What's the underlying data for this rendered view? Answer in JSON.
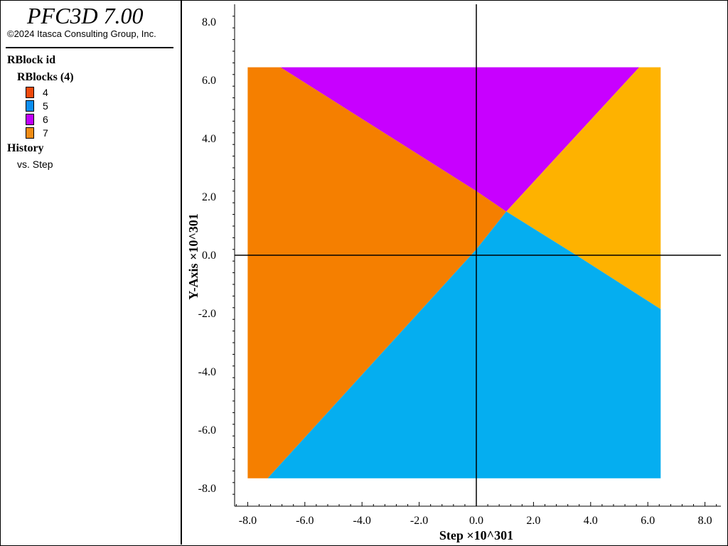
{
  "app": {
    "title": "PFC3D 7.00",
    "copyright": "©2024 Itasca Consulting Group, Inc."
  },
  "legend": {
    "heading": "RBlock id",
    "group_label": "RBlocks (4)",
    "items": [
      {
        "label": "4",
        "color": "#f04a0c"
      },
      {
        "label": "5",
        "color": "#0c8ef0"
      },
      {
        "label": "6",
        "color": "#c000ff"
      },
      {
        "label": "7",
        "color": "#f08c14"
      }
    ],
    "history_heading": "History",
    "history_item": "vs. Step"
  },
  "plot": {
    "x_title": "Step ×10^301",
    "y_title": "Y-Axis ×10^301",
    "x_ticks": [
      {
        "v": -8,
        "label": "-8.0"
      },
      {
        "v": -6,
        "label": "-6.0"
      },
      {
        "v": -4,
        "label": "-4.0"
      },
      {
        "v": -2,
        "label": "-2.0"
      },
      {
        "v": 0,
        "label": "0.0"
      },
      {
        "v": 2,
        "label": "2.0"
      },
      {
        "v": 4,
        "label": "4.0"
      },
      {
        "v": 6,
        "label": "6.0"
      },
      {
        "v": 8,
        "label": "8.0"
      }
    ],
    "y_ticks": [
      {
        "v": 8,
        "label": "8.0"
      },
      {
        "v": 6,
        "label": "6.0"
      },
      {
        "v": 4,
        "label": "4.0"
      },
      {
        "v": 2,
        "label": "2.0"
      },
      {
        "v": 0,
        "label": "0.0"
      },
      {
        "v": -2,
        "label": "-2.0"
      },
      {
        "v": -4,
        "label": "-4.0"
      },
      {
        "v": -6,
        "label": "-6.0"
      },
      {
        "v": -8,
        "label": "-8.0"
      }
    ],
    "regions": [
      {
        "name": "region-orange-left",
        "color": "#f57f00",
        "points": [
          [
            -8.0,
            6.45
          ],
          [
            -6.85,
            6.45
          ],
          [
            0.0,
            2.2
          ],
          [
            1.05,
            1.5
          ],
          [
            0.0,
            0.2
          ],
          [
            -7.3,
            -7.65
          ],
          [
            -8.0,
            -7.65
          ]
        ]
      },
      {
        "name": "region-purple-top",
        "color": "#c800ff",
        "points": [
          [
            -6.85,
            6.45
          ],
          [
            5.7,
            6.45
          ],
          [
            1.05,
            1.5
          ],
          [
            0.0,
            2.2
          ]
        ]
      },
      {
        "name": "region-gold-right",
        "color": "#feb200",
        "points": [
          [
            5.7,
            6.45
          ],
          [
            6.45,
            6.45
          ],
          [
            6.45,
            -1.85
          ],
          [
            3.5,
            0.0
          ],
          [
            1.05,
            1.5
          ]
        ]
      },
      {
        "name": "region-blue-bottom",
        "color": "#05aef0",
        "points": [
          [
            1.05,
            1.5
          ],
          [
            3.5,
            0.0
          ],
          [
            6.45,
            -1.85
          ],
          [
            6.45,
            -7.65
          ],
          [
            -7.3,
            -7.65
          ],
          [
            0.0,
            0.2
          ]
        ]
      }
    ]
  }
}
